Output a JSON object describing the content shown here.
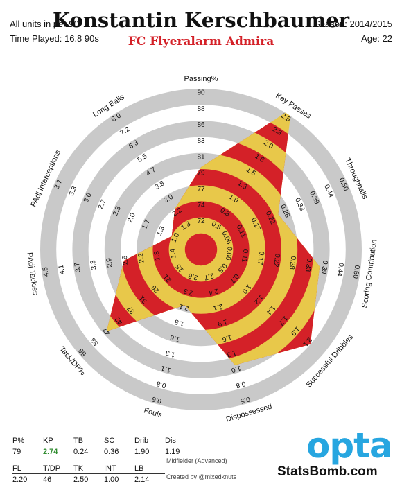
{
  "header": {
    "units": "All units in per 90",
    "time_played": "Time Played: 16.8 90s",
    "player_name": "Konstantin Kerschbaumer",
    "team": "FC Flyeralarm Admira",
    "season": "Season: 2014/2015",
    "age": "Age: 22"
  },
  "chart_data": {
    "type": "radar",
    "rings": 10,
    "colors": {
      "ring": "#c9c9c9",
      "band_red": "#d42128",
      "band_yellow": "#e8c84a",
      "center": "#d42128"
    },
    "axes": [
      {
        "name": "Passing%",
        "value": 79,
        "ticks": [
          "72",
          "74",
          "77",
          "79",
          "81",
          "83",
          "86",
          "88",
          "90"
        ]
      },
      {
        "name": "Key Passes",
        "value": 2.74,
        "ticks": [
          "0.5",
          "0.8",
          "1.0",
          "1.3",
          "1.5",
          "1.8",
          "2.0",
          "2.3",
          "2.5"
        ]
      },
      {
        "name": "Throughballs",
        "value": 0.24,
        "ticks": [
          "0.06",
          "0.11",
          "0.17",
          "0.22",
          "0.28",
          "0.33",
          "0.39",
          "0.44",
          "0.50"
        ]
      },
      {
        "name": "Scoring Contribution",
        "value": 0.36,
        "ticks": [
          "0.06",
          "0.11",
          "0.17",
          "0.22",
          "0.28",
          "0.33",
          "0.39",
          "0.44",
          "0.50"
        ]
      },
      {
        "name": "Successful Dribbles",
        "value": 1.9,
        "ticks": [
          "0.5",
          "0.7",
          "1.0",
          "1.2",
          "1.4",
          "1.7",
          "1.9",
          "2.1"
        ]
      },
      {
        "name": "Dispossessed",
        "value": 1.19,
        "ticks": [
          "2.7",
          "2.4",
          "2.1",
          "1.9",
          "1.6",
          "1.3",
          "1.0",
          "0.8",
          "0.5"
        ]
      },
      {
        "name": "Fouls",
        "value": 2.2,
        "ticks": [
          "2.6",
          "2.3",
          "2.1",
          "1.8",
          "1.6",
          "1.3",
          "1.1",
          "0.8",
          "0.6"
        ]
      },
      {
        "name": "Tack/DP%",
        "value": 46,
        "ticks": [
          "15",
          "21",
          "26",
          "31",
          "37",
          "42",
          "47",
          "53",
          "58"
        ]
      },
      {
        "name": "PAdj Tackles",
        "value": 2.5,
        "ticks": [
          "1.4",
          "1.8",
          "2.2",
          "2.6",
          "2.9",
          "3.3",
          "3.7",
          "4.1",
          "4.5"
        ]
      },
      {
        "name": "PAdj Interceptions",
        "value": 1.0,
        "ticks": [
          "1.0",
          "1.3",
          "1.7",
          "2.0",
          "2.3",
          "2.7",
          "3.0",
          "3.3",
          "3.7"
        ]
      },
      {
        "name": "Long Balls",
        "value": 2.14,
        "ticks": [
          "1.3",
          "2.2",
          "3.0",
          "3.8",
          "4.7",
          "5.5",
          "6.3",
          "7.2",
          "8.0"
        ]
      }
    ]
  },
  "stats_table_1": {
    "headers": [
      "P%",
      "KP",
      "TB",
      "SC",
      "Drib",
      "Dis"
    ],
    "values": [
      "79",
      "2.74",
      "0.24",
      "0.36",
      "1.90",
      "1.19"
    ]
  },
  "stats_table_2": {
    "headers": [
      "FL",
      "T/DP",
      "TK",
      "INT",
      "LB"
    ],
    "values": [
      "2.20",
      "46",
      "2.50",
      "1.00",
      "2.14"
    ]
  },
  "footer": {
    "position": "Midfielder (Advanced)",
    "credit": "Created by @mixedknuts",
    "opta_logo": "opta",
    "statsbomb": "StatsBomb.com"
  }
}
